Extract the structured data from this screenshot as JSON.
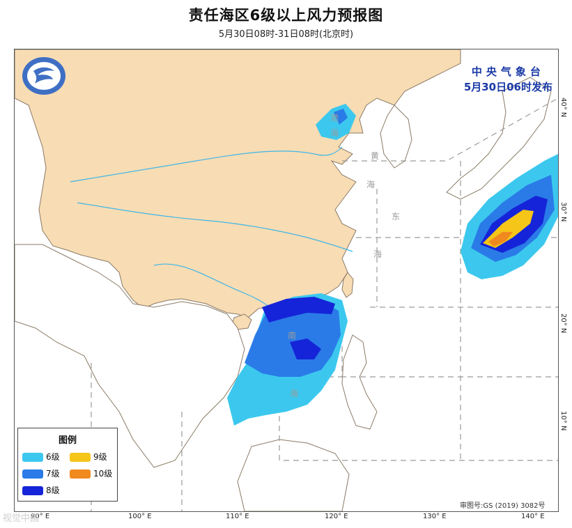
{
  "header": {
    "title": "责任海区6级以上风力预报图",
    "subtitle": "5月30日08时-31日08时(北京时)"
  },
  "issuer": {
    "name": "中央气象台",
    "issued": "5月30日06时发布"
  },
  "legend": {
    "title": "图例",
    "items": [
      {
        "label": "6级",
        "color": "#3cc8ee"
      },
      {
        "label": "9级",
        "color": "#f5c518"
      },
      {
        "label": "7级",
        "color": "#2a7be8"
      },
      {
        "label": "10级",
        "color": "#f08a1e"
      },
      {
        "label": "8级",
        "color": "#1524d8"
      }
    ]
  },
  "sea_labels": [
    "渤",
    "海",
    "黄",
    "海",
    "东",
    "海",
    "南",
    "海"
  ],
  "longitude_labels": [
    "90° E",
    "100° E",
    "110° E",
    "120° E",
    "130° E",
    "140° E"
  ],
  "latitude_labels": [
    "10° N",
    "20° N",
    "30° N",
    "40° N"
  ],
  "map_review": "审图号:GS (2019) 3082号",
  "watermark": "视觉中国",
  "colors": {
    "land_china": "#f7dcb4",
    "land_other": "#ffffff",
    "rivers": "#3fb6e8",
    "border": "#7a7a7a",
    "dashed_zone": "#9a9a9a"
  }
}
